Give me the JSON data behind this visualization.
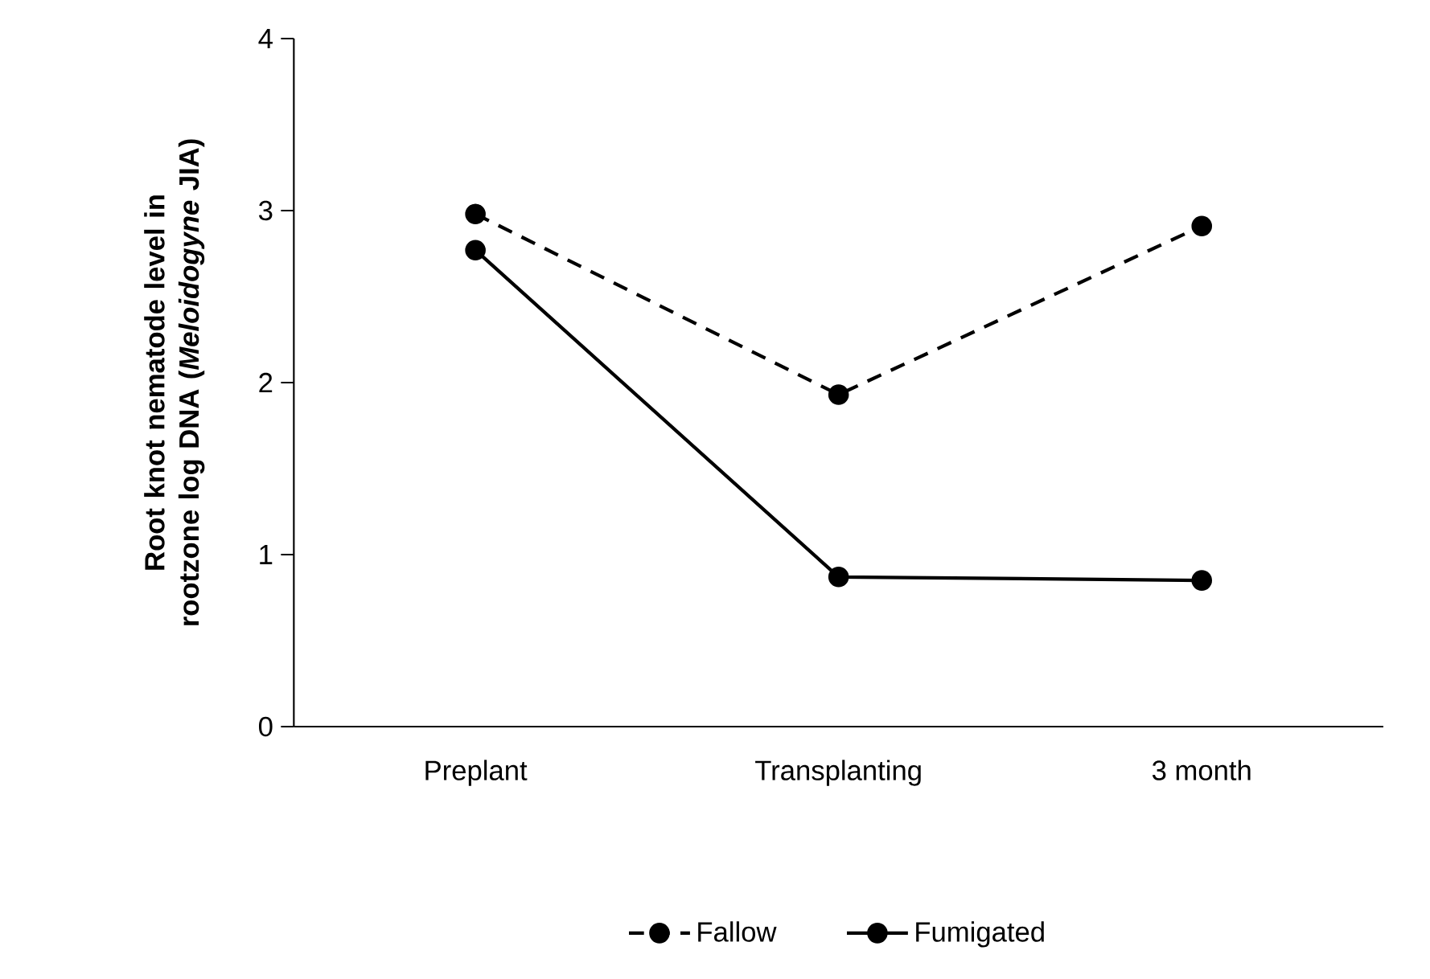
{
  "chart_data": {
    "type": "line",
    "ylabel": "Root knot nematode level in rootzone log DNA (*Meloidogyne* JIA)",
    "categories": [
      "Preplant",
      "Transplanting",
      "3 month"
    ],
    "series": [
      {
        "name": "Fallow",
        "color": "#000000",
        "line_style": "dashed",
        "values": [
          2.98,
          1.93,
          2.91
        ]
      },
      {
        "name": "Fumigated",
        "color": "#000000",
        "line_style": "solid",
        "values": [
          2.77,
          0.87,
          0.85
        ]
      }
    ],
    "ylim": [
      0,
      4
    ],
    "yticks": [
      0,
      1,
      2,
      3,
      4
    ],
    "marker": "circle",
    "legend": "bottom",
    "grid": false
  }
}
